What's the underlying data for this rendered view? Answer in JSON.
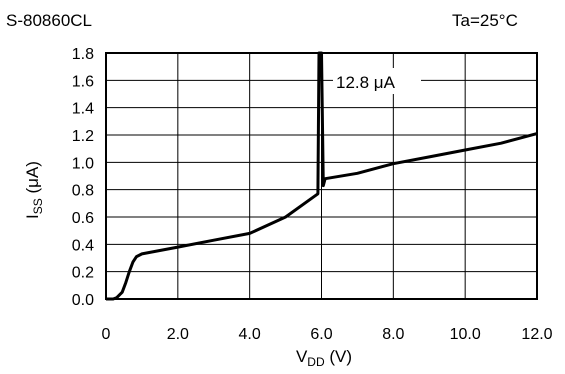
{
  "chart_data": {
    "type": "line",
    "title": "S-80860CL",
    "condition": "Ta=25°C",
    "xlabel": {
      "main": "V",
      "sub": "DD",
      "unit": " (V)"
    },
    "ylabel": {
      "main": "I",
      "sub": "SS",
      "unit": " (μA)"
    },
    "xlim": [
      0,
      12
    ],
    "ylim": [
      0,
      1.8
    ],
    "x_ticks": [
      "0",
      "2.0",
      "4.0",
      "6.0",
      "8.0",
      "10.0",
      "12.0"
    ],
    "y_ticks": [
      "0.0",
      "0.2",
      "0.4",
      "0.6",
      "0.8",
      "1.0",
      "1.2",
      "1.4",
      "1.6",
      "1.8"
    ],
    "grid": true,
    "annotation": "12.8 μA",
    "series": [
      {
        "points": [
          [
            0.0,
            0.0
          ],
          [
            0.2,
            0.0
          ],
          [
            0.3,
            0.01
          ],
          [
            0.45,
            0.05
          ],
          [
            0.55,
            0.12
          ],
          [
            0.65,
            0.2
          ],
          [
            0.75,
            0.27
          ],
          [
            0.85,
            0.31
          ],
          [
            1.0,
            0.33
          ],
          [
            2.0,
            0.38
          ],
          [
            3.0,
            0.43
          ],
          [
            4.0,
            0.48
          ],
          [
            5.0,
            0.6
          ],
          [
            5.9,
            0.77
          ],
          [
            5.93,
            1.8
          ],
          [
            6.0,
            1.8
          ],
          [
            6.05,
            0.83
          ],
          [
            6.1,
            0.88
          ],
          [
            7.0,
            0.92
          ],
          [
            8.0,
            0.99
          ],
          [
            9.0,
            1.04
          ],
          [
            10.0,
            1.09
          ],
          [
            11.0,
            1.14
          ],
          [
            12.0,
            1.21
          ]
        ],
        "color": "#000000"
      }
    ]
  }
}
